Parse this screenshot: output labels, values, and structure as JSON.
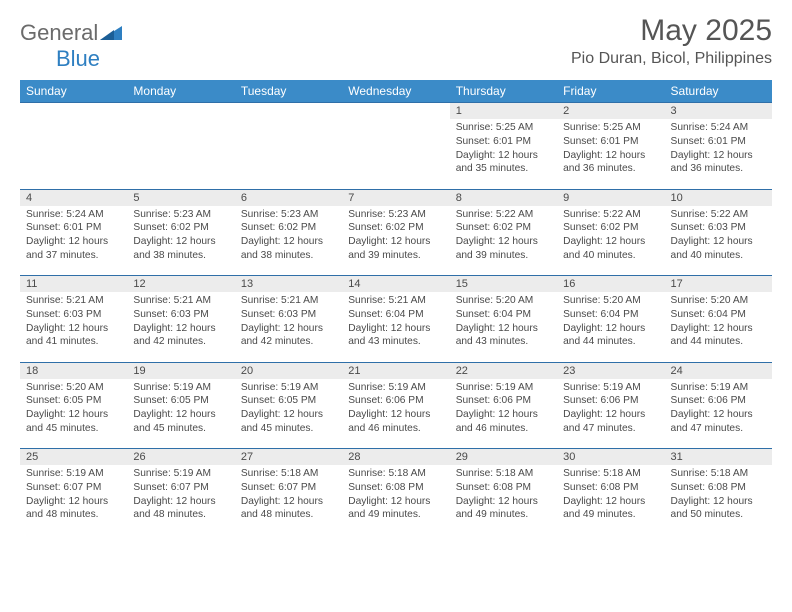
{
  "brand": {
    "part1": "General",
    "part2": "Blue"
  },
  "title": "May 2025",
  "location": "Pio Duran, Bicol, Philippines",
  "colors": {
    "header_bg": "#3b8bc8",
    "row_border": "#2f6fa8",
    "daynum_bg": "#ececec",
    "brand_blue": "#2e7fc1"
  },
  "weekdays": [
    "Sunday",
    "Monday",
    "Tuesday",
    "Wednesday",
    "Thursday",
    "Friday",
    "Saturday"
  ],
  "weeks": [
    [
      null,
      null,
      null,
      null,
      {
        "n": "1",
        "sr": "5:25 AM",
        "ss": "6:01 PM",
        "dl": "12 hours and 35 minutes."
      },
      {
        "n": "2",
        "sr": "5:25 AM",
        "ss": "6:01 PM",
        "dl": "12 hours and 36 minutes."
      },
      {
        "n": "3",
        "sr": "5:24 AM",
        "ss": "6:01 PM",
        "dl": "12 hours and 36 minutes."
      }
    ],
    [
      {
        "n": "4",
        "sr": "5:24 AM",
        "ss": "6:01 PM",
        "dl": "12 hours and 37 minutes."
      },
      {
        "n": "5",
        "sr": "5:23 AM",
        "ss": "6:02 PM",
        "dl": "12 hours and 38 minutes."
      },
      {
        "n": "6",
        "sr": "5:23 AM",
        "ss": "6:02 PM",
        "dl": "12 hours and 38 minutes."
      },
      {
        "n": "7",
        "sr": "5:23 AM",
        "ss": "6:02 PM",
        "dl": "12 hours and 39 minutes."
      },
      {
        "n": "8",
        "sr": "5:22 AM",
        "ss": "6:02 PM",
        "dl": "12 hours and 39 minutes."
      },
      {
        "n": "9",
        "sr": "5:22 AM",
        "ss": "6:02 PM",
        "dl": "12 hours and 40 minutes."
      },
      {
        "n": "10",
        "sr": "5:22 AM",
        "ss": "6:03 PM",
        "dl": "12 hours and 40 minutes."
      }
    ],
    [
      {
        "n": "11",
        "sr": "5:21 AM",
        "ss": "6:03 PM",
        "dl": "12 hours and 41 minutes."
      },
      {
        "n": "12",
        "sr": "5:21 AM",
        "ss": "6:03 PM",
        "dl": "12 hours and 42 minutes."
      },
      {
        "n": "13",
        "sr": "5:21 AM",
        "ss": "6:03 PM",
        "dl": "12 hours and 42 minutes."
      },
      {
        "n": "14",
        "sr": "5:21 AM",
        "ss": "6:04 PM",
        "dl": "12 hours and 43 minutes."
      },
      {
        "n": "15",
        "sr": "5:20 AM",
        "ss": "6:04 PM",
        "dl": "12 hours and 43 minutes."
      },
      {
        "n": "16",
        "sr": "5:20 AM",
        "ss": "6:04 PM",
        "dl": "12 hours and 44 minutes."
      },
      {
        "n": "17",
        "sr": "5:20 AM",
        "ss": "6:04 PM",
        "dl": "12 hours and 44 minutes."
      }
    ],
    [
      {
        "n": "18",
        "sr": "5:20 AM",
        "ss": "6:05 PM",
        "dl": "12 hours and 45 minutes."
      },
      {
        "n": "19",
        "sr": "5:19 AM",
        "ss": "6:05 PM",
        "dl": "12 hours and 45 minutes."
      },
      {
        "n": "20",
        "sr": "5:19 AM",
        "ss": "6:05 PM",
        "dl": "12 hours and 45 minutes."
      },
      {
        "n": "21",
        "sr": "5:19 AM",
        "ss": "6:06 PM",
        "dl": "12 hours and 46 minutes."
      },
      {
        "n": "22",
        "sr": "5:19 AM",
        "ss": "6:06 PM",
        "dl": "12 hours and 46 minutes."
      },
      {
        "n": "23",
        "sr": "5:19 AM",
        "ss": "6:06 PM",
        "dl": "12 hours and 47 minutes."
      },
      {
        "n": "24",
        "sr": "5:19 AM",
        "ss": "6:06 PM",
        "dl": "12 hours and 47 minutes."
      }
    ],
    [
      {
        "n": "25",
        "sr": "5:19 AM",
        "ss": "6:07 PM",
        "dl": "12 hours and 48 minutes."
      },
      {
        "n": "26",
        "sr": "5:19 AM",
        "ss": "6:07 PM",
        "dl": "12 hours and 48 minutes."
      },
      {
        "n": "27",
        "sr": "5:18 AM",
        "ss": "6:07 PM",
        "dl": "12 hours and 48 minutes."
      },
      {
        "n": "28",
        "sr": "5:18 AM",
        "ss": "6:08 PM",
        "dl": "12 hours and 49 minutes."
      },
      {
        "n": "29",
        "sr": "5:18 AM",
        "ss": "6:08 PM",
        "dl": "12 hours and 49 minutes."
      },
      {
        "n": "30",
        "sr": "5:18 AM",
        "ss": "6:08 PM",
        "dl": "12 hours and 49 minutes."
      },
      {
        "n": "31",
        "sr": "5:18 AM",
        "ss": "6:08 PM",
        "dl": "12 hours and 50 minutes."
      }
    ]
  ],
  "labels": {
    "sunrise": "Sunrise: ",
    "sunset": "Sunset: ",
    "daylight": "Daylight: "
  }
}
